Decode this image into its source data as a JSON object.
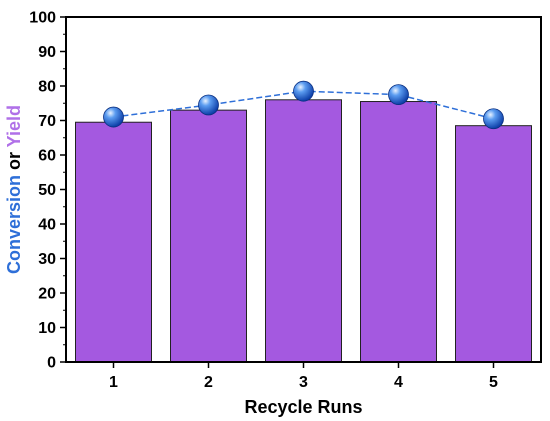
{
  "chart_data": {
    "type": "bar",
    "xlabel": "Recycle Runs",
    "ylabel_parts": [
      {
        "text": "Conversion",
        "color": "#2e6fd8"
      },
      {
        "text": " or ",
        "color": "#000000"
      },
      {
        "text": "Yield",
        "color": "#b070e8"
      }
    ],
    "categories": [
      "1",
      "2",
      "3",
      "4",
      "5"
    ],
    "ylim": [
      0,
      100
    ],
    "yticks": [
      0,
      10,
      20,
      30,
      40,
      50,
      60,
      70,
      80,
      90,
      100
    ],
    "series": [
      {
        "type": "bar",
        "values": [
          69.5,
          73,
          76,
          75.5,
          68.5
        ],
        "color": "#a459e0"
      },
      {
        "type": "line",
        "marker": "sphere",
        "values": [
          71,
          74.5,
          78.5,
          77.5,
          70.5
        ],
        "color": "#2e6fd8"
      }
    ],
    "grid": false,
    "legend": "none"
  }
}
